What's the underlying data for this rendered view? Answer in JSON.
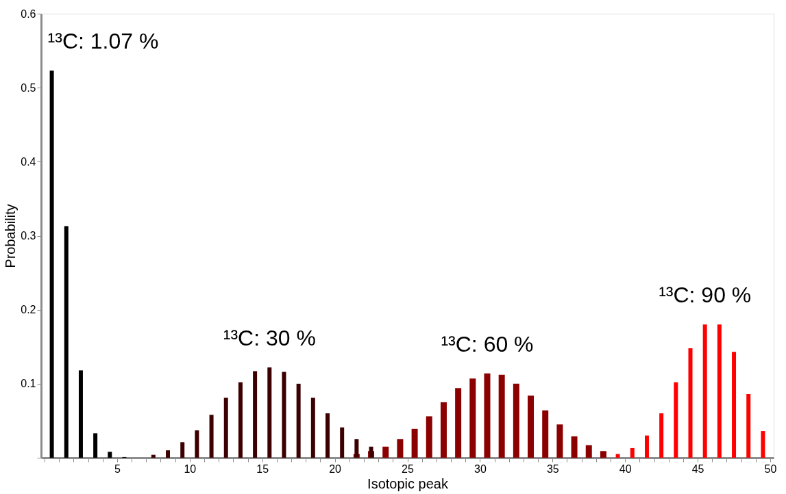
{
  "chart_data": {
    "type": "bar",
    "xlabel": "Isotopic peak",
    "ylabel": "Probability",
    "series": [
      {
        "color": "#000000",
        "x": [
          0.5,
          1.5,
          2.5,
          3.5,
          4.5,
          5.5
        ],
        "values": [
          0.523,
          0.313,
          0.118,
          0.033,
          0.008,
          0.001
        ]
      },
      {
        "color": "#3d0000",
        "x": [
          7.5,
          8.5,
          9.5,
          10.5,
          11.5,
          12.5,
          13.5,
          14.5,
          15.5,
          16.5,
          17.5,
          18.5,
          19.5,
          20.5,
          21.5,
          22.5
        ],
        "values": [
          0.004,
          0.01,
          0.021,
          0.037,
          0.058,
          0.081,
          0.102,
          0.117,
          0.122,
          0.116,
          0.1,
          0.081,
          0.06,
          0.041,
          0.025,
          0.015
        ]
      },
      {
        "color": "#8b0000",
        "x": [
          21.5,
          22.5,
          23.5,
          24.5,
          25.5,
          26.5,
          27.5,
          28.5,
          29.5,
          30.5,
          31.5,
          32.5,
          33.5,
          34.5,
          35.5,
          36.5,
          37.5,
          38.5
        ],
        "values": [
          0.005,
          0.009,
          0.015,
          0.025,
          0.039,
          0.056,
          0.075,
          0.094,
          0.107,
          0.114,
          0.112,
          0.1,
          0.084,
          0.064,
          0.045,
          0.029,
          0.017,
          0.009
        ]
      },
      {
        "color": "#ff0000",
        "x": [
          39.5,
          40.5,
          41.5,
          42.5,
          43.5,
          44.5,
          45.5,
          46.5,
          47.5,
          48.5,
          49.5
        ],
        "values": [
          0.005,
          0.013,
          0.03,
          0.06,
          0.102,
          0.148,
          0.18,
          0.18,
          0.143,
          0.086,
          0.036
        ]
      }
    ],
    "annotations": [
      "¹³C: 1.07 %",
      "¹³C: 30 %",
      "¹³C: 60 %",
      "¹³C: 90 %"
    ],
    "xlim": [
      0,
      50
    ],
    "xticks": [
      {
        "value": 0,
        "label": null
      },
      {
        "value": 1,
        "label": null
      },
      {
        "value": 2,
        "label": null
      },
      {
        "value": 3,
        "label": null
      },
      {
        "value": 4,
        "label": null
      },
      5,
      {
        "value": 6,
        "label": null
      },
      {
        "value": 7,
        "label": null
      },
      {
        "value": 8,
        "label": null
      },
      {
        "value": 9,
        "label": null
      },
      10,
      {
        "value": 11,
        "label": null
      },
      {
        "value": 12,
        "label": null
      },
      {
        "value": 13,
        "label": null
      },
      {
        "value": 14,
        "label": null
      },
      15,
      {
        "value": 16,
        "label": null
      },
      {
        "value": 17,
        "label": null
      },
      {
        "value": 18,
        "label": null
      },
      {
        "value": 19,
        "label": null
      },
      20,
      {
        "value": 21,
        "label": null
      },
      {
        "value": 22,
        "label": null
      },
      {
        "value": 23,
        "label": null
      },
      {
        "value": 24,
        "label": null
      },
      25,
      {
        "value": 26,
        "label": null
      },
      {
        "value": 27,
        "label": null
      },
      {
        "value": 28,
        "label": null
      },
      {
        "value": 29,
        "label": null
      },
      30,
      {
        "value": 31,
        "label": null
      },
      {
        "value": 32,
        "label": null
      },
      {
        "value": 33,
        "label": null
      },
      {
        "value": 34,
        "label": null
      },
      35,
      {
        "value": 36,
        "label": null
      },
      {
        "value": 37,
        "label": null
      },
      {
        "value": 38,
        "label": null
      },
      {
        "value": 39,
        "label": null
      },
      40,
      {
        "value": 41,
        "label": null
      },
      {
        "value": 42,
        "label": null
      },
      {
        "value": 43,
        "label": null
      },
      {
        "value": 44,
        "label": null
      },
      45,
      {
        "value": 46,
        "label": null
      },
      {
        "value": 47,
        "label": null
      },
      {
        "value": 48,
        "label": null
      },
      {
        "value": 49,
        "label": null
      },
      50
    ],
    "ylim": [
      0,
      0.6
    ],
    "yticks": [
      {
        "value": 0,
        "label": null
      },
      0.1,
      0.2,
      0.3,
      0.4,
      0.5,
      0.6
    ],
    "grid": false
  }
}
